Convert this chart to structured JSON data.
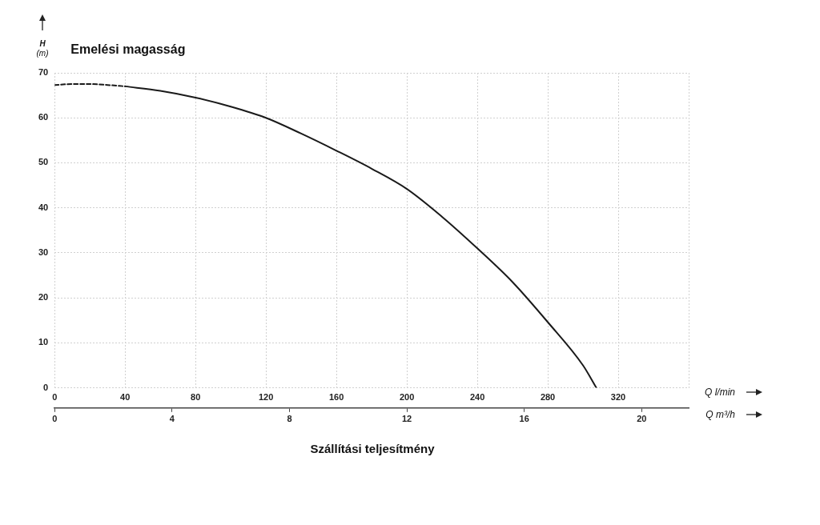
{
  "chart_data": {
    "type": "line",
    "title": "Emelési magasság",
    "ylabel": "H (m)",
    "xlabel": "Q l/min",
    "x2label": "Q m³/h",
    "annotations": [
      "Szállítási teljesítmény"
    ],
    "series": [
      {
        "color": "#1a1a1a",
        "line_style": "dashed",
        "x": [
          0,
          10,
          20,
          30,
          40
        ],
        "values": [
          67.3,
          67.5,
          67.5,
          67.3,
          67.0
        ]
      },
      {
        "color": "#1a1a1a",
        "line_style": "solid",
        "x": [
          40,
          60,
          80,
          100,
          120,
          140,
          160,
          180,
          200,
          220,
          240,
          260,
          280,
          300,
          307.6
        ],
        "values": [
          67.0,
          66.0,
          64.5,
          62.5,
          60.0,
          56.5,
          52.7,
          48.7,
          44.2,
          38.0,
          31.0,
          23.5,
          14.6,
          5.0,
          0
        ]
      }
    ],
    "xlim": [
      0,
      360
    ],
    "xticks": [
      0,
      40,
      80,
      120,
      160,
      200,
      240,
      280,
      320,
      {
        "value": 360,
        "label": null
      }
    ],
    "x2lim": [
      0,
      21.6
    ],
    "x2ticks": [
      0,
      4,
      8,
      12,
      16,
      20
    ],
    "ylim": [
      0,
      70
    ],
    "yticks": [
      0,
      10,
      20,
      30,
      40,
      50,
      60,
      70
    ],
    "grid": true,
    "legend": false,
    "marker": "none"
  }
}
